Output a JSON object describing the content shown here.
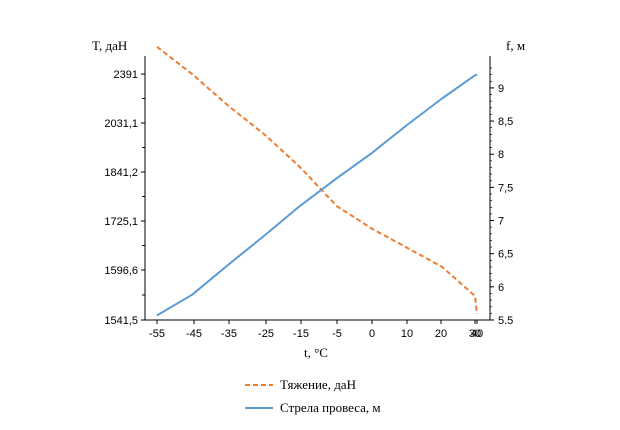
{
  "chart_data": {
    "type": "line",
    "xlabel": "t, °C",
    "ylabel_left": "T, даН",
    "ylabel_right": "f, м",
    "x_ticks": [
      "-55",
      "-45",
      "-35",
      "-25",
      "-15",
      "-5",
      "0",
      "10",
      "20",
      "30",
      "40"
    ],
    "y_left_ticks": [
      "2391",
      "2031,1",
      "1841,2",
      "1725,1",
      "1596,6",
      "1541,5"
    ],
    "y_right_ticks": [
      "9",
      "8,5",
      "8",
      "7,5",
      "7",
      "6,5",
      "6",
      "5.5"
    ],
    "y_right_range": [
      5.5,
      9.3
    ],
    "grid": false,
    "legend_position": "bottom",
    "series": [
      {
        "name": "Тяжение, даН",
        "axis": "left",
        "style": "dashed",
        "color": "#ED7D31",
        "x": [
          -55,
          -45,
          -35,
          -25,
          -15,
          -5,
          0,
          10,
          20,
          30,
          40
        ],
        "y": [
          2591,
          2391,
          2160,
          1985,
          1860,
          1760,
          1705,
          1655,
          1605,
          1568,
          1548
        ]
      },
      {
        "name": "Стрела провеса, м",
        "axis": "right",
        "style": "solid",
        "color": "#5B9BD5",
        "x": [
          -55,
          -45,
          -35,
          -25,
          -15,
          -5,
          0,
          10,
          20,
          30,
          40
        ],
        "y": [
          5.57,
          5.88,
          6.33,
          6.78,
          7.22,
          7.64,
          8.02,
          8.44,
          8.84,
          9.19,
          9.2
        ]
      }
    ]
  }
}
